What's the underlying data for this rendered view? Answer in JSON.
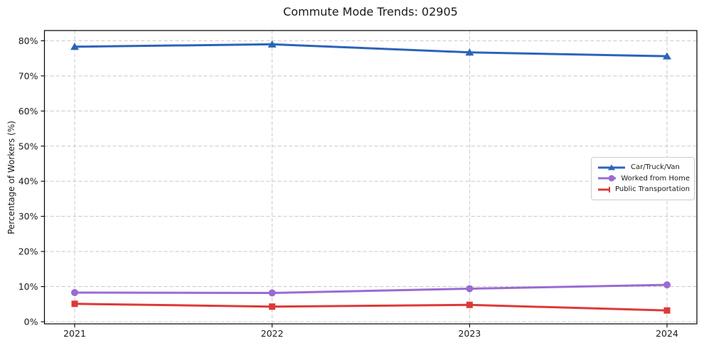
{
  "title": "Commute Mode Trends: 02905",
  "chart_data": {
    "type": "line",
    "title": "Commute Mode Trends: 02905",
    "xlabel": "",
    "ylabel": "Percentage of Workers (%)",
    "categories": [
      "2021",
      "2022",
      "2023",
      "2024"
    ],
    "series": [
      {
        "name": "Car/Truck/Van",
        "values": [
          78.3,
          79.0,
          76.7,
          75.6
        ],
        "color": "#2b64ba",
        "marker": "triangle"
      },
      {
        "name": "Worked from Home",
        "values": [
          8.3,
          8.2,
          9.4,
          10.5
        ],
        "color": "#9a6bd4",
        "marker": "circle"
      },
      {
        "name": "Public Transportation",
        "values": [
          5.1,
          4.3,
          4.8,
          3.2
        ],
        "color": "#dc3a38",
        "marker": "square"
      }
    ],
    "ylim": [
      0,
      83
    ],
    "yticks": [
      0,
      10,
      20,
      30,
      40,
      50,
      60,
      70,
      80
    ],
    "ytick_labels": [
      "0%",
      "10%",
      "20%",
      "30%",
      "40%",
      "50%",
      "60%",
      "70%",
      "80%"
    ],
    "grid": true,
    "grid_style": "dashed",
    "legend_position": "center-right",
    "colors": {
      "grid": "#c8c8c8",
      "spine": "#000000",
      "text": "#1a1a1a"
    }
  }
}
